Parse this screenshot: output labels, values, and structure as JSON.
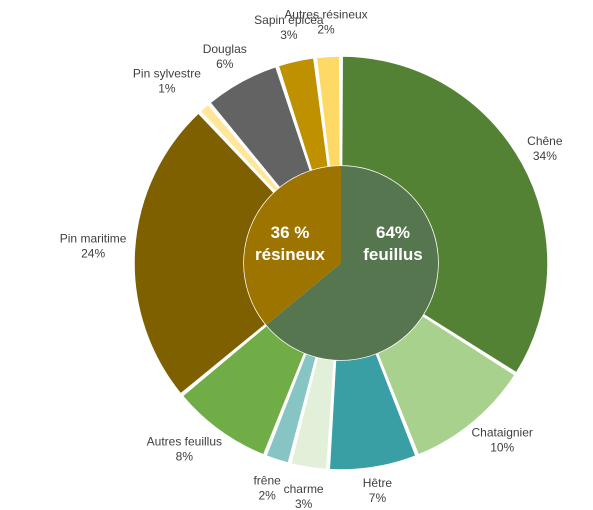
{
  "chart_data": {
    "type": "pie",
    "title": "",
    "slices": [
      {
        "name": "Chêne",
        "pct": "34%",
        "value": 34,
        "color": "#548235"
      },
      {
        "name": "Chataignier",
        "pct": "10%",
        "value": 10,
        "color": "#A9D18E"
      },
      {
        "name": "Hêtre",
        "pct": "7%",
        "value": 7,
        "color": "#3A9EA5"
      },
      {
        "name": "charme",
        "pct": "3%",
        "value": 3,
        "color": "#E2F0D9"
      },
      {
        "name": "frêne",
        "pct": "2%",
        "value": 2,
        "color": "#87C5C5"
      },
      {
        "name": "Autres feuillus",
        "pct": "8%",
        "value": 8,
        "color": "#70AD47"
      },
      {
        "name": "Pin maritime",
        "pct": "24%",
        "value": 24,
        "color": "#7F6000"
      },
      {
        "name": "Pin sylvestre",
        "pct": "1%",
        "value": 1,
        "color": "#FFE699"
      },
      {
        "name": "Douglas",
        "pct": "6%",
        "value": 6,
        "color": "#636363"
      },
      {
        "name": "Sapin épicéa",
        "pct": "3%",
        "value": 3,
        "color": "#BF9000"
      },
      {
        "name": "Autres résineux",
        "pct": "2%",
        "value": 2,
        "color": "#FFD966"
      }
    ],
    "inner": [
      {
        "line1": "64%",
        "line2": "feuillus",
        "value": 64,
        "color": "#56764F"
      },
      {
        "line1": "36 %",
        "line2": "résineux",
        "value": 36,
        "color": "#9E7400"
      }
    ]
  }
}
